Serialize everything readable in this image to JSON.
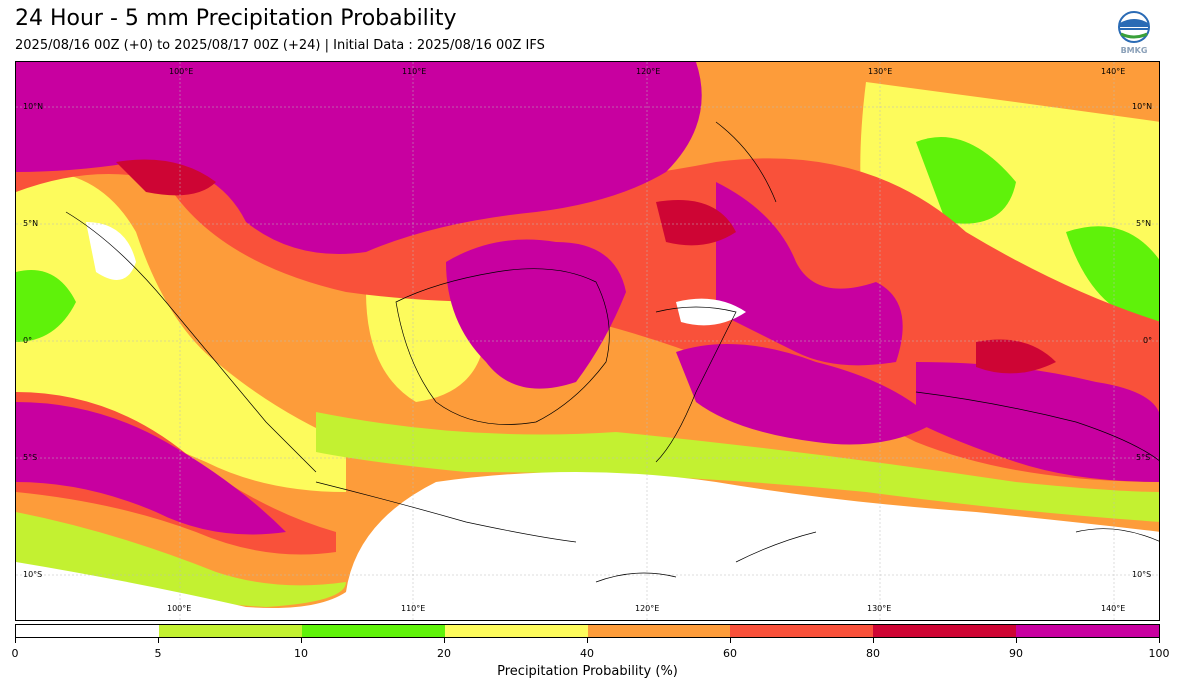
{
  "header": {
    "title": "24 Hour - 5 mm Precipitation Probability",
    "subtitle": "2025/08/16 00Z (+0) to 2025/08/17 00Z (+24) | Initial Data : 2025/08/16 00Z IFS",
    "logo_text": "BMKG"
  },
  "map": {
    "top_lon_labels": [
      "100°E",
      "110°E",
      "120°E",
      "130°E",
      "140°E"
    ],
    "bottom_lon_labels": [
      "100°E",
      "110°E",
      "120°E",
      "130°E",
      "140°E"
    ],
    "left_lat_labels": [
      "10°N",
      "5°N",
      "0°",
      "5°S",
      "10°S"
    ],
    "right_lat_labels": [
      "10°N",
      "5°N",
      "0°",
      "5°S",
      "10°S"
    ]
  },
  "colorbar": {
    "label": "Precipitation Probability (%)",
    "ticks": [
      "0",
      "5",
      "10",
      "20",
      "40",
      "60",
      "80",
      "90",
      "100"
    ],
    "colors": [
      "#ffffff",
      "#c3f131",
      "#5ff20a",
      "#fdfb5c",
      "#fd9c3a",
      "#f9513a",
      "#ce0534",
      "#c800a0"
    ]
  }
}
